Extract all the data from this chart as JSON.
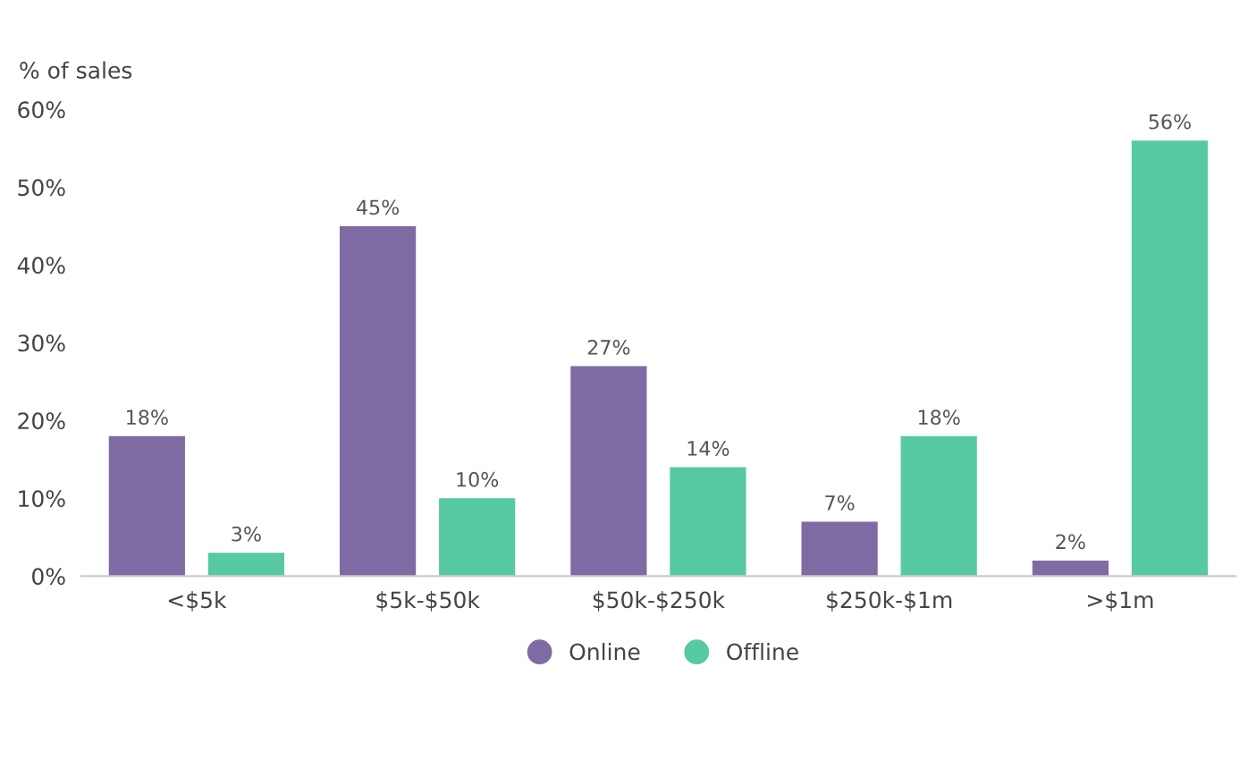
{
  "chart_data": {
    "type": "bar",
    "ylabel": "% of sales",
    "categories": [
      "<$5k",
      "$5k-$50k",
      "$50k-$250k",
      "$250k-$1m",
      ">$1m"
    ],
    "series": [
      {
        "name": "Online",
        "color": "#7e6ba4",
        "values": [
          18,
          45,
          27,
          7,
          2
        ],
        "value_labels": [
          "18%",
          "45%",
          "27%",
          "7%",
          "2%"
        ]
      },
      {
        "name": "Offline",
        "color": "#57c9a3",
        "values": [
          3,
          10,
          14,
          18,
          56
        ],
        "value_labels": [
          "3%",
          "10%",
          "14%",
          "18%",
          "56%"
        ]
      }
    ],
    "ylim": [
      0,
      60
    ],
    "yticks": [
      {
        "value": 0,
        "label": "0%"
      },
      {
        "value": 10,
        "label": "10%"
      },
      {
        "value": 20,
        "label": "20%"
      },
      {
        "value": 30,
        "label": "30%"
      },
      {
        "value": 40,
        "label": "40%"
      },
      {
        "value": 50,
        "label": "50%"
      },
      {
        "value": 60,
        "label": "60%"
      }
    ],
    "grid": false,
    "legend": "bottom"
  }
}
